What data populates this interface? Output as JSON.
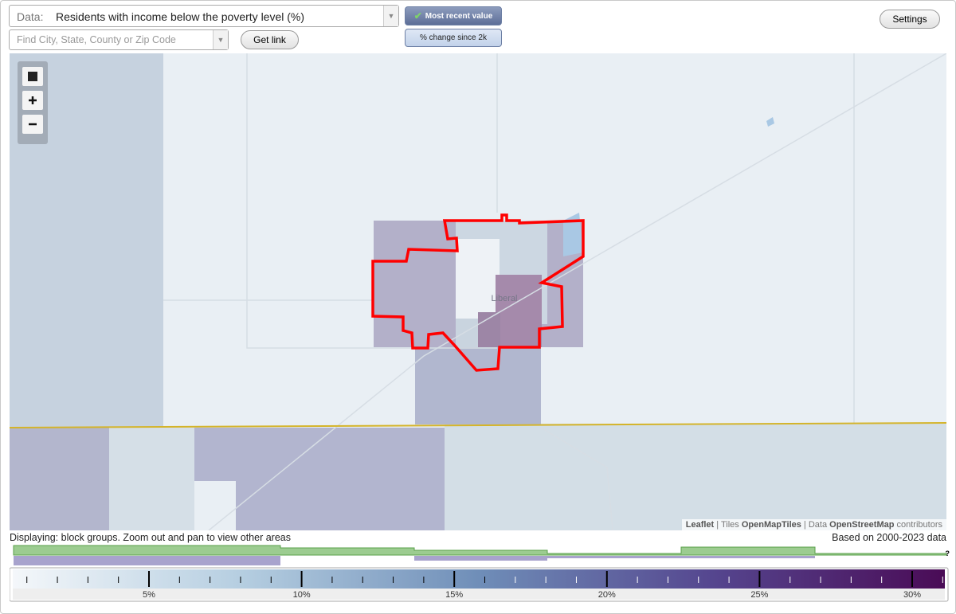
{
  "header": {
    "data_label": "Data:",
    "data_value": "Residents with income below the poverty level (%)",
    "search_placeholder": "Find City, State, County or Zip Code",
    "get_link": "Get link",
    "mode_buttons": [
      "Most recent value",
      "% change since 2k"
    ],
    "settings": "Settings"
  },
  "map": {
    "place_label": "Liberal",
    "attribution": [
      "Leaflet",
      "|",
      "Tiles",
      "OpenMapTiles",
      "|",
      "Data",
      "OpenStreetMap",
      "contributors"
    ]
  },
  "footer": {
    "displaying": "Displaying: block groups. Zoom out and pan to view other areas",
    "based_on": "Based on 2000-2023 data",
    "help": "?"
  },
  "legend": {
    "labels": [
      "5%",
      "10%",
      "15%",
      "20%",
      "25%",
      "30%"
    ]
  }
}
